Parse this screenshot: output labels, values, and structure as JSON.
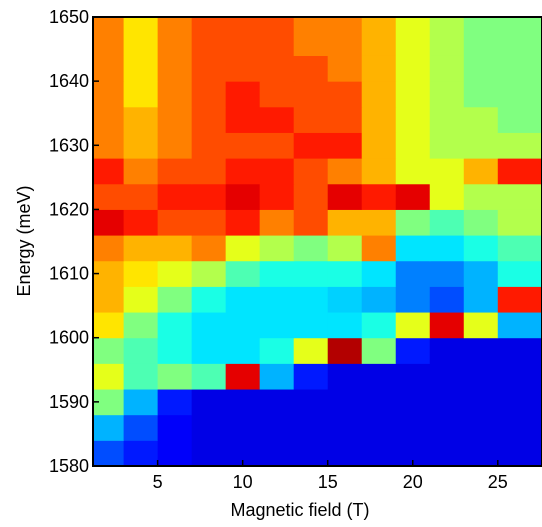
{
  "chart_data": {
    "type": "heatmap",
    "colormap": "jet",
    "x_label": "Magnetic field (T)",
    "y_label": "Energy (meV)",
    "xlim": [
      1.2,
      27.6
    ],
    "ylim": [
      1580,
      1650
    ],
    "xticks": [
      5,
      10,
      15,
      20,
      25
    ],
    "yticks": [
      1580,
      1590,
      1600,
      1610,
      1620,
      1630,
      1640,
      1650
    ],
    "x": [
      2,
      4,
      6,
      8,
      10,
      12,
      14,
      16,
      18,
      20,
      22,
      24,
      26
    ],
    "y": [
      1582,
      1586,
      1590,
      1594,
      1598,
      1602,
      1606,
      1610,
      1614,
      1618,
      1622,
      1626,
      1630,
      1634,
      1638,
      1642,
      1646
    ],
    "zlim": [
      0,
      1
    ],
    "z": [
      [
        0.2,
        0.15,
        0.12,
        0.1,
        0.1,
        0.1,
        0.1,
        0.1,
        0.1,
        0.1,
        0.1,
        0.1,
        0.1
      ],
      [
        0.3,
        0.2,
        0.12,
        0.1,
        0.1,
        0.1,
        0.1,
        0.1,
        0.1,
        0.1,
        0.1,
        0.1,
        0.1
      ],
      [
        0.5,
        0.3,
        0.15,
        0.1,
        0.1,
        0.1,
        0.1,
        0.1,
        0.1,
        0.1,
        0.1,
        0.1,
        0.1
      ],
      [
        0.6,
        0.45,
        0.5,
        0.45,
        0.9,
        0.3,
        0.15,
        0.1,
        0.1,
        0.1,
        0.1,
        0.1,
        0.1
      ],
      [
        0.5,
        0.45,
        0.4,
        0.35,
        0.35,
        0.4,
        0.6,
        0.95,
        0.5,
        0.15,
        0.1,
        0.1,
        0.1
      ],
      [
        0.65,
        0.5,
        0.4,
        0.35,
        0.35,
        0.35,
        0.35,
        0.35,
        0.4,
        0.6,
        0.9,
        0.6,
        0.3
      ],
      [
        0.7,
        0.6,
        0.5,
        0.4,
        0.35,
        0.35,
        0.35,
        0.33,
        0.3,
        0.25,
        0.2,
        0.3,
        0.85
      ],
      [
        0.7,
        0.65,
        0.6,
        0.55,
        0.45,
        0.4,
        0.4,
        0.4,
        0.35,
        0.25,
        0.25,
        0.3,
        0.4
      ],
      [
        0.75,
        0.7,
        0.7,
        0.75,
        0.6,
        0.55,
        0.5,
        0.55,
        0.75,
        0.35,
        0.35,
        0.4,
        0.45
      ],
      [
        0.9,
        0.85,
        0.8,
        0.8,
        0.85,
        0.75,
        0.8,
        0.7,
        0.7,
        0.5,
        0.45,
        0.5,
        0.55
      ],
      [
        0.8,
        0.8,
        0.85,
        0.85,
        0.9,
        0.85,
        0.8,
        0.9,
        0.85,
        0.9,
        0.6,
        0.55,
        0.55
      ],
      [
        0.85,
        0.75,
        0.8,
        0.8,
        0.85,
        0.85,
        0.8,
        0.75,
        0.7,
        0.6,
        0.6,
        0.7,
        0.85
      ],
      [
        0.75,
        0.7,
        0.75,
        0.8,
        0.8,
        0.8,
        0.85,
        0.85,
        0.7,
        0.6,
        0.55,
        0.55,
        0.55
      ],
      [
        0.75,
        0.7,
        0.75,
        0.8,
        0.85,
        0.85,
        0.8,
        0.8,
        0.7,
        0.6,
        0.55,
        0.55,
        0.5
      ],
      [
        0.75,
        0.65,
        0.75,
        0.8,
        0.85,
        0.8,
        0.8,
        0.8,
        0.7,
        0.6,
        0.55,
        0.5,
        0.5
      ],
      [
        0.75,
        0.65,
        0.75,
        0.8,
        0.8,
        0.8,
        0.8,
        0.75,
        0.7,
        0.6,
        0.55,
        0.5,
        0.5
      ],
      [
        0.75,
        0.65,
        0.75,
        0.8,
        0.8,
        0.8,
        0.75,
        0.75,
        0.7,
        0.6,
        0.55,
        0.5,
        0.5
      ]
    ]
  }
}
